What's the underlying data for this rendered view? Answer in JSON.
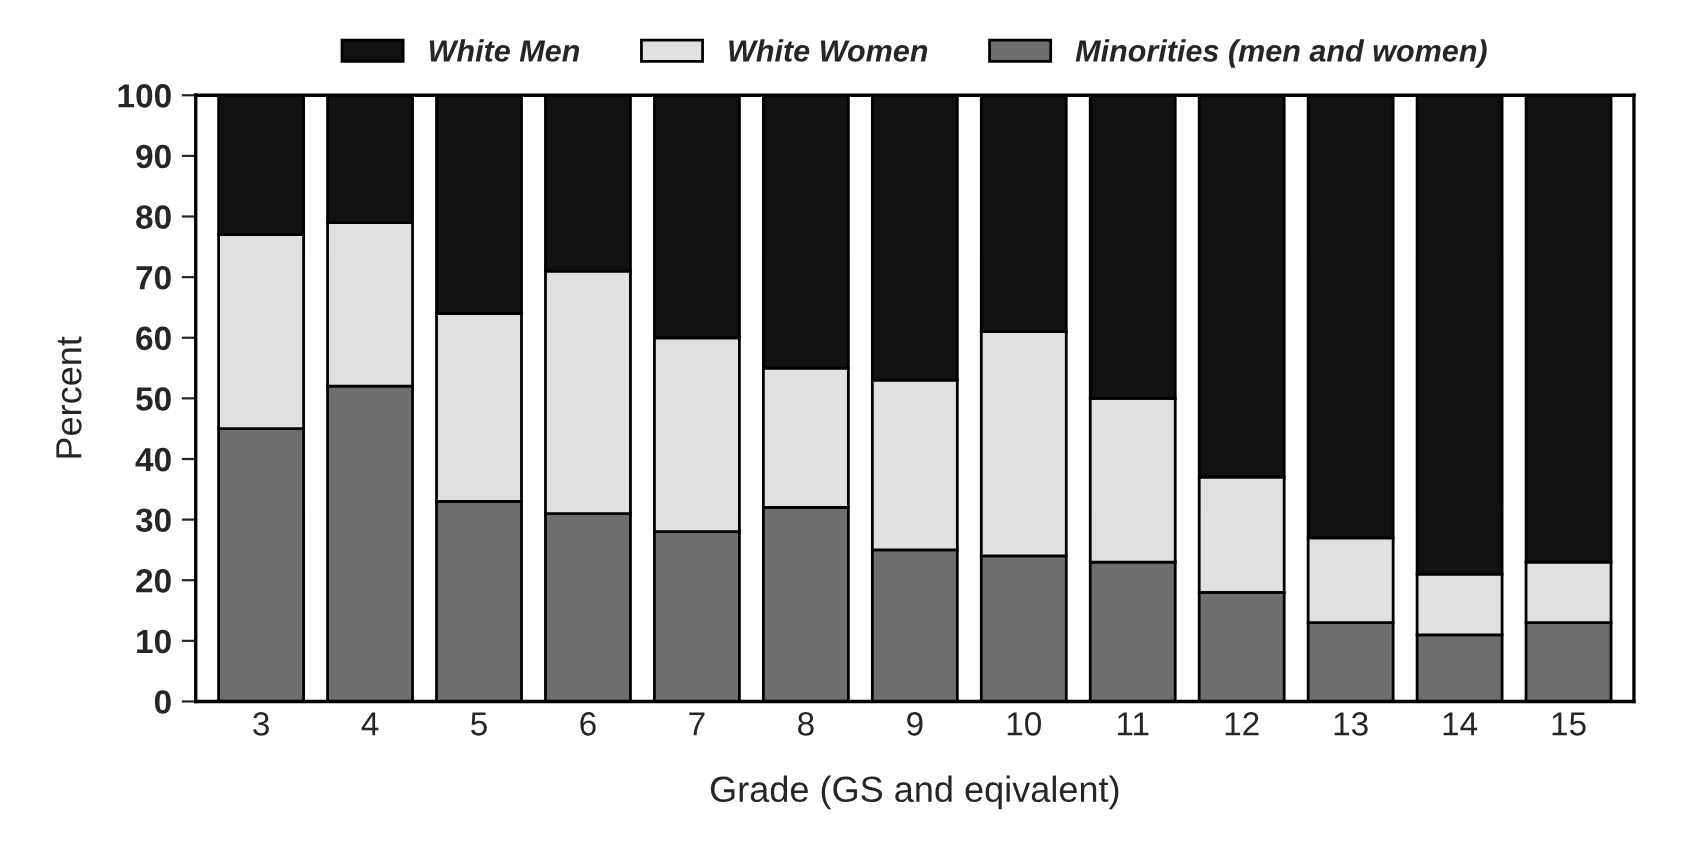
{
  "chart_data": {
    "type": "bar",
    "stacked": true,
    "xlabel": "Grade (GS and eqivalent)",
    "ylabel": "Percent",
    "categories": [
      "3",
      "4",
      "5",
      "6",
      "7",
      "8",
      "9",
      "10",
      "11",
      "12",
      "13",
      "14",
      "15"
    ],
    "series": [
      {
        "name": "Minorities (men and women)",
        "color": "#6e6e6e",
        "values": [
          45,
          52,
          33,
          31,
          28,
          32,
          25,
          24,
          23,
          18,
          13,
          11,
          13
        ]
      },
      {
        "name": "White Women",
        "color": "#e0e0e0",
        "values": [
          32,
          27,
          31,
          40,
          32,
          23,
          28,
          37,
          27,
          19,
          14,
          10,
          10
        ]
      },
      {
        "name": "White Men",
        "color": "#111111",
        "values": [
          23,
          21,
          36,
          29,
          40,
          45,
          47,
          39,
          50,
          63,
          73,
          79,
          77
        ]
      }
    ],
    "ylim": [
      0,
      100
    ],
    "yticks": [
      0,
      10,
      20,
      30,
      40,
      50,
      60,
      70,
      80,
      90,
      100
    ],
    "grid": false,
    "legend": "top"
  }
}
